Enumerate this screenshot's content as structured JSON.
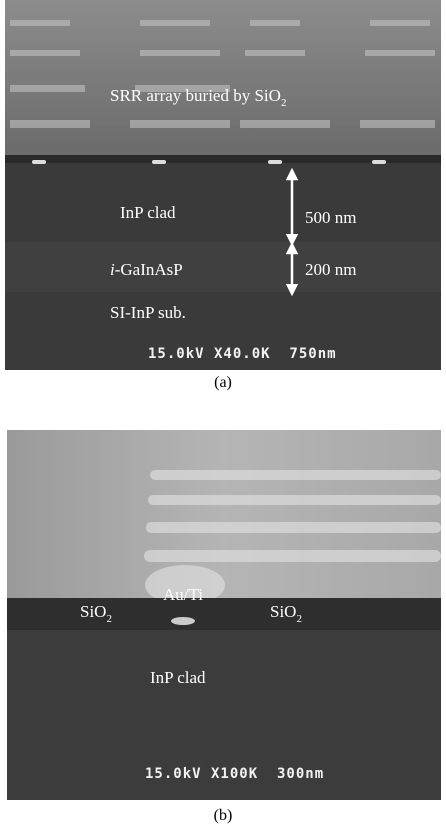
{
  "panel_a": {
    "top_label": {
      "text": "SRR array buried by SiO",
      "subscript": "2"
    },
    "clad_label": "InP clad",
    "clad_thickness": "500 nm",
    "core_label": {
      "italic": "i",
      "text": "-GaInAsP"
    },
    "core_thickness": "200 nm",
    "substrate_label": "SI-InP sub.",
    "sem_info": "15.0kV X40.0K  750nm",
    "caption": "(a)"
  },
  "panel_b": {
    "metal_label": "Au/Ti",
    "left_label": {
      "text": "SiO",
      "subscript": "2"
    },
    "right_label": {
      "text": "SiO",
      "subscript": "2"
    },
    "clad_label": "InP clad",
    "sem_info": "15.0kV X100K  300nm",
    "caption": "(b)"
  }
}
